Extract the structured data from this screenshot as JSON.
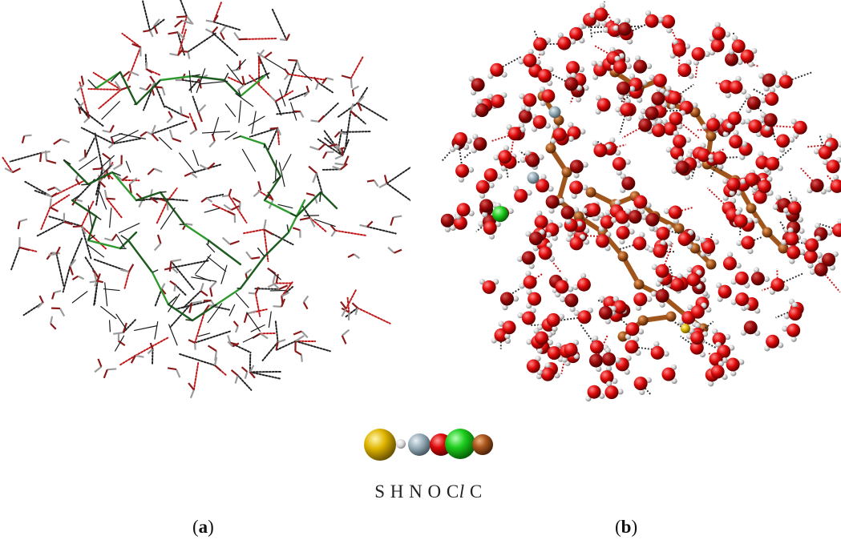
{
  "legend": {
    "elements": [
      {
        "symbol": "S",
        "color": "#d4a500"
      },
      {
        "symbol": "H",
        "color": "#e0e0e0"
      },
      {
        "symbol": "N",
        "color": "#8fa7b3"
      },
      {
        "symbol": "O",
        "color": "#d10000"
      },
      {
        "symbol": "Cl",
        "color": "#19c21a"
      },
      {
        "symbol": "C",
        "color": "#a0521c"
      }
    ]
  },
  "panels": {
    "a": {
      "label": "a",
      "style": "wireframe"
    },
    "b": {
      "label": "b",
      "style": "ball-and-stick"
    }
  },
  "colors": {
    "water_oxygen": "#e10000",
    "hydrogen": "#dcdcdc",
    "carbon_b": "#b0621f",
    "backbone_a": "#1f6b22",
    "hbond": "#222222"
  }
}
